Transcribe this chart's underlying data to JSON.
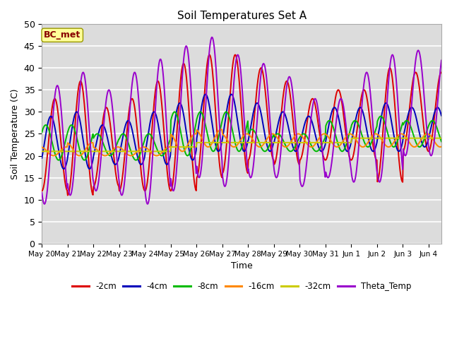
{
  "title": "Soil Temperatures Set A",
  "xlabel": "Time",
  "ylabel": "Soil Temperature (C)",
  "ylim": [
    0,
    50
  ],
  "yticks": [
    0,
    5,
    10,
    15,
    20,
    25,
    30,
    35,
    40,
    45,
    50
  ],
  "plot_bg_color": "#dcdcdc",
  "grid_color": "#ffffff",
  "legend_labels": [
    "-2cm",
    "-4cm",
    "-8cm",
    "-16cm",
    "-32cm",
    "Theta_Temp"
  ],
  "legend_colors": [
    "#dd0000",
    "#0000bb",
    "#00bb00",
    "#ff8800",
    "#cccc00",
    "#9900cc"
  ],
  "annotation_text": "BC_met",
  "annotation_bg": "#ffff99",
  "annotation_fg": "#880000",
  "line_width": 1.4,
  "peaks_2cm": [
    33,
    37,
    31,
    33,
    37,
    41,
    43,
    43,
    40,
    37,
    33,
    35,
    35,
    40,
    39
  ],
  "troughs_2cm": [
    12,
    11,
    13,
    12,
    12,
    12,
    15,
    16,
    19,
    18,
    19,
    19,
    19,
    14,
    21
  ],
  "peaks_4cm": [
    29,
    30,
    27,
    28,
    30,
    32,
    34,
    34,
    32,
    30,
    29,
    31,
    31,
    32,
    31
  ],
  "troughs_4cm": [
    17,
    17,
    18,
    18,
    18,
    19,
    21,
    21,
    21,
    21,
    21,
    21,
    21,
    21,
    22
  ],
  "peaks_8cm": [
    27,
    27,
    25,
    25,
    25,
    30,
    30,
    30,
    26,
    25,
    25,
    28,
    28,
    29,
    28
  ],
  "troughs_8cm": [
    19,
    19,
    20,
    19,
    20,
    20,
    21,
    21,
    21,
    21,
    21,
    21,
    22,
    22,
    22
  ],
  "peaks_16cm": [
    22,
    23,
    22,
    22,
    22,
    25,
    26,
    25,
    25,
    25,
    25,
    25,
    25,
    25,
    25
  ],
  "troughs_16cm": [
    20,
    20,
    20,
    20,
    20,
    21,
    22,
    22,
    22,
    22,
    22,
    22,
    22,
    22,
    22
  ],
  "peaks_32cm": [
    21,
    21,
    21,
    21,
    21,
    22,
    23,
    23,
    23,
    23,
    23,
    23,
    24,
    24,
    24
  ],
  "troughs_32cm": [
    21,
    21,
    21,
    21,
    21,
    22,
    23,
    23,
    23,
    23,
    23,
    23,
    24,
    24,
    24
  ],
  "peaks_theta": [
    36,
    39,
    35,
    39,
    42,
    45,
    47,
    43,
    41,
    38,
    33,
    33,
    39,
    43,
    44
  ],
  "troughs_theta": [
    9,
    11,
    12,
    11,
    9,
    12,
    15,
    13,
    15,
    15,
    13,
    15,
    14,
    14,
    20
  ],
  "phase_offsets": [
    0.0,
    0.15,
    0.35,
    0.55,
    0.75,
    -0.1
  ],
  "num_days": 15.5,
  "num_points_per_day": 48
}
